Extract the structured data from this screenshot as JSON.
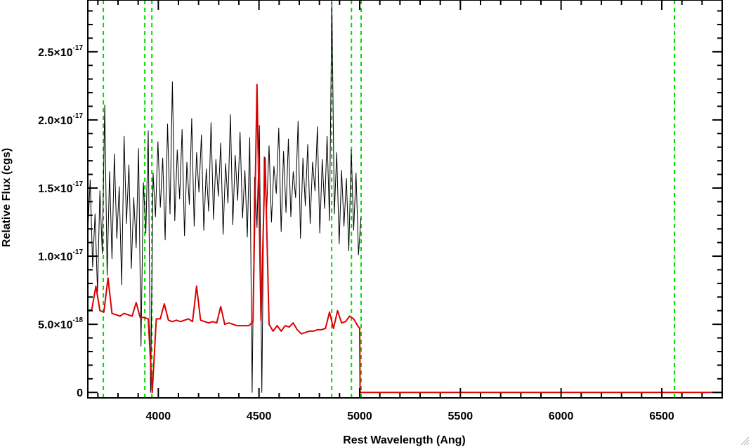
{
  "chart_data": {
    "type": "line",
    "title": "",
    "xlabel": "Rest Wavelength (Ang)",
    "ylabel": "Relative Flux (cgs)",
    "xlim": [
      3650,
      6800
    ],
    "ylim": [
      -4e-19,
      2.88e-17
    ],
    "x_ticks": [
      4000,
      4500,
      5000,
      5500,
      6000,
      6500
    ],
    "x_tick_labels": [
      "4000",
      "4500",
      "5000",
      "5500",
      "6000",
      "6500"
    ],
    "y_ticks": [
      {
        "value": 0,
        "mantissa": "0",
        "exponent": ""
      },
      {
        "value": 5e-18,
        "mantissa": "5.0×10",
        "exponent": "-18"
      },
      {
        "value": 1e-17,
        "mantissa": "1.0×10",
        "exponent": "-17"
      },
      {
        "value": 1.5e-17,
        "mantissa": "1.5×10",
        "exponent": "-17"
      },
      {
        "value": 2e-17,
        "mantissa": "2.0×10",
        "exponent": "-17"
      },
      {
        "value": 2.5e-17,
        "mantissa": "2.5×10",
        "exponent": "-17"
      }
    ],
    "grid": false,
    "colors": {
      "observed": "#000000",
      "model": "#dd0000",
      "reference_lines": "#00dd00"
    },
    "reference_lines_x": [
      3727,
      3933,
      3968,
      4861,
      4959,
      5007,
      6563
    ],
    "series": [
      {
        "color": "#000000",
        "x": [
          3650,
          3662,
          3674,
          3686,
          3698,
          3710,
          3722,
          3734,
          3746,
          3758,
          3770,
          3782,
          3794,
          3806,
          3818,
          3830,
          3842,
          3854,
          3866,
          3878,
          3890,
          3902,
          3914,
          3926,
          3938,
          3950,
          3962,
          3974,
          3986,
          3998,
          4010,
          4022,
          4034,
          4046,
          4058,
          4070,
          4082,
          4094,
          4106,
          4118,
          4130,
          4142,
          4154,
          4166,
          4178,
          4190,
          4202,
          4214,
          4226,
          4238,
          4250,
          4262,
          4274,
          4286,
          4298,
          4310,
          4322,
          4334,
          4346,
          4358,
          4370,
          4382,
          4394,
          4406,
          4418,
          4430,
          4442,
          4454,
          4466,
          4478,
          4490,
          4502,
          4514,
          4526,
          4538,
          4550,
          4562,
          4574,
          4586,
          4598,
          4610,
          4622,
          4634,
          4646,
          4658,
          4670,
          4682,
          4694,
          4706,
          4718,
          4730,
          4742,
          4754,
          4766,
          4778,
          4790,
          4802,
          4814,
          4826,
          4838,
          4850,
          4862,
          4874,
          4886,
          4898,
          4910,
          4922,
          4934,
          4946,
          4958,
          4970,
          4982,
          4994,
          5006
        ],
        "y": [
          1.18e-17,
          1.56e-17,
          9.2e-18,
          1.31e-17,
          7.4e-18,
          1.48e-17,
          1.02e-17,
          2.11e-17,
          8.6e-18,
          1.62e-17,
          9.8e-18,
          1.75e-17,
          1.13e-17,
          1.51e-17,
          7.9e-18,
          1.88e-17,
          1.24e-17,
          1.67e-17,
          9.1e-18,
          1.43e-17,
          1.06e-17,
          1.79e-17,
          3.4e-18,
          1.54e-17,
          1.17e-17,
          1.92e-17,
          0.0,
          1.61e-17,
          1.29e-17,
          1.84e-17,
          1.36e-17,
          1.72e-17,
          1.12e-17,
          1.97e-17,
          1.31e-17,
          2.28e-17,
          1.26e-17,
          1.78e-17,
          1.42e-17,
          1.93e-17,
          1.15e-17,
          1.69e-17,
          1.38e-17,
          2.01e-17,
          1.22e-17,
          1.76e-17,
          1.47e-17,
          1.89e-17,
          1.19e-17,
          1.64e-17,
          1.33e-17,
          1.98e-17,
          1.27e-17,
          1.71e-17,
          1.44e-17,
          1.83e-17,
          1.16e-17,
          1.68e-17,
          1.39e-17,
          2.04e-17,
          1.23e-17,
          1.74e-17,
          1.41e-17,
          1.91e-17,
          1.28e-17,
          1.63e-17,
          1.14e-17,
          1.87e-17,
          0.0,
          1.58e-17,
          1.21e-17,
          1.96e-17,
          0.0,
          1.73e-17,
          1.34e-17,
          1.81e-17,
          1.25e-17,
          1.66e-17,
          1.46e-17,
          1.94e-17,
          1.18e-17,
          1.77e-17,
          1.32e-17,
          1.86e-17,
          1.29e-17,
          1.62e-17,
          1.43e-17,
          1.99e-17,
          1.13e-17,
          1.72e-17,
          1.37e-17,
          1.82e-17,
          1.24e-17,
          1.69e-17,
          1.48e-17,
          1.95e-17,
          1.17e-17,
          1.71e-17,
          1.35e-17,
          1.88e-17,
          1.26e-17,
          2.86e-17,
          1.31e-17,
          1.76e-17,
          1.09e-17,
          1.63e-17,
          1.22e-17,
          1.57e-17,
          1.04e-17,
          1.78e-17,
          1.19e-17,
          1.61e-17,
          1.01e-17,
          1.28e-17
        ]
      },
      {
        "color": "#dd0000",
        "x": [
          3650,
          3670,
          3690,
          3710,
          3730,
          3750,
          3770,
          3790,
          3810,
          3830,
          3850,
          3870,
          3890,
          3910,
          3930,
          3950,
          3970,
          3990,
          4010,
          4030,
          4050,
          4070,
          4090,
          4110,
          4130,
          4150,
          4170,
          4190,
          4210,
          4230,
          4250,
          4270,
          4290,
          4310,
          4330,
          4350,
          4370,
          4390,
          4410,
          4430,
          4450,
          4470,
          4490,
          4510,
          4530,
          4550,
          4570,
          4590,
          4610,
          4630,
          4650,
          4670,
          4690,
          4710,
          4730,
          4750,
          4770,
          4790,
          4810,
          4830,
          4850,
          4870,
          4890,
          4910,
          4930,
          4950,
          4970,
          4990,
          5000,
          5002,
          5200,
          5400,
          5600,
          5800,
          6000,
          6200,
          6400,
          6600,
          6800
        ],
        "y": [
          6e-18,
          6.1e-18,
          7.8e-18,
          6e-18,
          5.9e-18,
          8.4e-18,
          5.8e-18,
          5.7e-18,
          5.6e-18,
          5.8e-18,
          5.7e-18,
          5.6e-18,
          6.6e-18,
          5.5e-18,
          5.5e-18,
          5.4e-18,
          0.0,
          5.4e-18,
          5.4e-18,
          6.5e-18,
          5.3e-18,
          5.2e-18,
          5.3e-18,
          5.2e-18,
          5.3e-18,
          5.4e-18,
          5.2e-18,
          7.8e-18,
          5.3e-18,
          5.2e-18,
          5.1e-18,
          5.2e-18,
          5.1e-18,
          6.3e-18,
          5e-18,
          5.1e-18,
          5e-18,
          4.9e-18,
          4.9e-18,
          4.9e-18,
          4.9e-18,
          5.2e-18,
          2.26e-17,
          5.3e-18,
          1.72e-17,
          5e-18,
          4.5e-18,
          4.9e-18,
          4.5e-18,
          4.9e-18,
          4.8e-18,
          5.1e-18,
          4.6e-18,
          4.3e-18,
          4.4e-18,
          4.5e-18,
          4.5e-18,
          4.6e-18,
          4.6e-18,
          4.7e-18,
          5.9e-18,
          4.7e-18,
          6e-18,
          5.1e-18,
          5.2e-18,
          5.6e-18,
          5.4e-18,
          4.9e-18,
          4.7e-18,
          0.0,
          0.0,
          0.0,
          0.0,
          0.0,
          0.0,
          0.0,
          0.0,
          0.0,
          0.0
        ]
      }
    ]
  }
}
